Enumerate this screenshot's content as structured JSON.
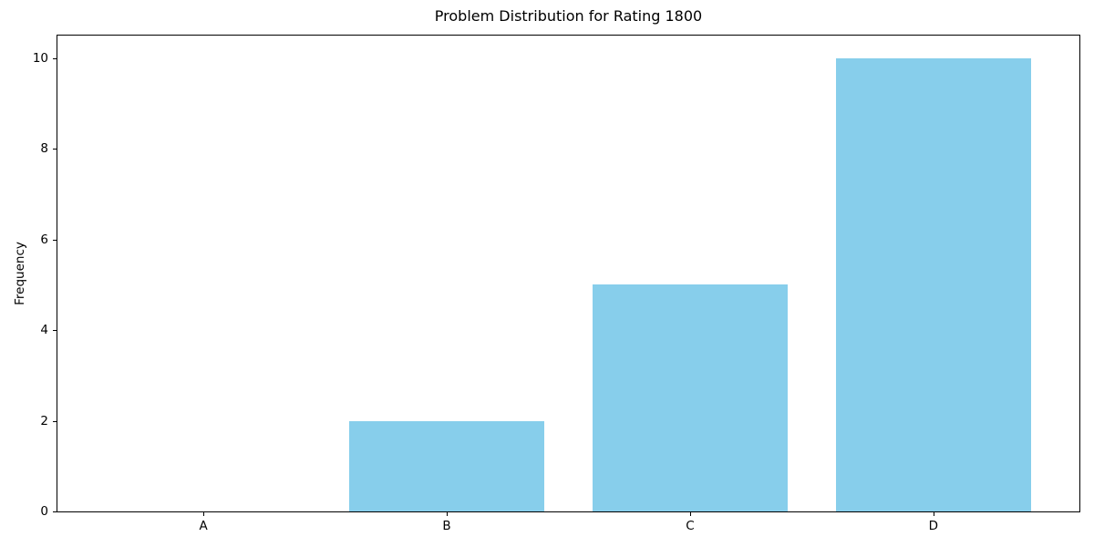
{
  "chart_data": {
    "type": "bar",
    "title": "Problem Distribution for Rating 1800",
    "xlabel": "",
    "ylabel": "Frequency",
    "categories": [
      "A",
      "B",
      "C",
      "D"
    ],
    "values": [
      0,
      2,
      5,
      10
    ],
    "yticks": [
      0,
      2,
      4,
      6,
      8,
      10
    ],
    "ylim": [
      0,
      10.5
    ],
    "bar_color": "#87ceeb",
    "axis_color": "#000000",
    "text_color": "#000000",
    "grid": false,
    "legend": "none",
    "bar_width_fraction": 0.8
  }
}
